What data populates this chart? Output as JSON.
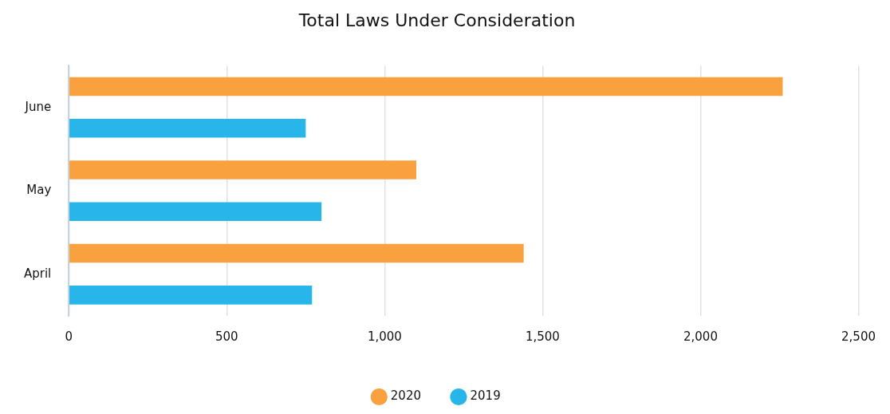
{
  "chart_data": {
    "type": "bar",
    "orientation": "horizontal",
    "title": "Total Laws Under Consideration",
    "categories": [
      "June",
      "May",
      "April"
    ],
    "series": [
      {
        "name": "2020",
        "color": "#f9a03f",
        "values": [
          2260,
          1100,
          1440
        ]
      },
      {
        "name": "2019",
        "color": "#28b5e9",
        "values": [
          750,
          800,
          770
        ]
      }
    ],
    "xlim": [
      0,
      2500
    ],
    "xticks": [
      0,
      500,
      {
        "value": 1000,
        "label": "1,000"
      },
      {
        "value": 1500,
        "label": "1,500"
      },
      {
        "value": 2000,
        "label": "2,000"
      },
      {
        "value": 2500,
        "label": "2,500"
      }
    ],
    "grid": "x",
    "legend": "bottom",
    "marker": "circle"
  }
}
